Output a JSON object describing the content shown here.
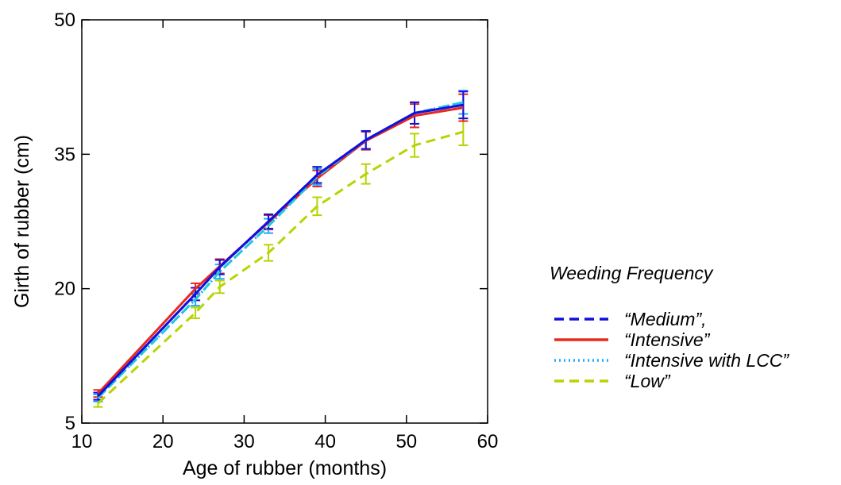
{
  "chart_data": {
    "type": "line",
    "xlabel": "Age of rubber (months)",
    "ylabel": "Girth of rubber (cm)",
    "xlim": [
      10,
      60
    ],
    "ylim": [
      5,
      50
    ],
    "xticks": [
      10,
      20,
      30,
      40,
      50,
      60
    ],
    "yticks": [
      5,
      20,
      35,
      50
    ],
    "grid": false,
    "legend": {
      "title": "Weeding Frequency",
      "placement": "right",
      "entries": [
        "“Medium”,",
        "“Intensive”",
        "“Intensive with LCC”",
        "“Low”"
      ]
    },
    "x": [
      12,
      24,
      27,
      33,
      39,
      45,
      51,
      57
    ],
    "series": [
      {
        "name": "“Medium”,",
        "color": "#1010e0",
        "style": "dashed",
        "values": [
          8.0,
          19.4,
          22.4,
          27.5,
          32.7,
          36.6,
          39.6,
          40.5
        ],
        "errors": [
          0.4,
          0.7,
          0.8,
          0.8,
          0.9,
          1.0,
          1.2,
          1.5
        ]
      },
      {
        "name": "“Intensive”",
        "color": "#e8281e",
        "style": "solid",
        "values": [
          8.3,
          20.0,
          22.5,
          27.4,
          32.3,
          36.5,
          39.3,
          40.2
        ],
        "errors": [
          0.4,
          0.6,
          0.8,
          0.8,
          0.9,
          1.0,
          1.3,
          1.5
        ]
      },
      {
        "name": "“Intensive with LCC”",
        "color": "#22aaff",
        "style": "dotted",
        "values": [
          7.8,
          18.8,
          21.9,
          27.0,
          32.5,
          36.6,
          39.6,
          40.8
        ],
        "errors": [
          0.4,
          0.7,
          0.8,
          0.8,
          0.9,
          1.0,
          1.2,
          1.3
        ]
      },
      {
        "name": "“Low”",
        "color": "#b8d400",
        "style": "dashed",
        "values": [
          7.2,
          17.3,
          20.2,
          24.0,
          29.2,
          32.8,
          36.0,
          37.5
        ],
        "errors": [
          0.4,
          0.6,
          0.7,
          0.9,
          1.0,
          1.1,
          1.3,
          1.5
        ]
      }
    ],
    "overlay_line": {
      "color": "#1010e0",
      "style": "solid",
      "values": [
        8.0,
        19.4,
        22.4,
        27.5,
        32.7,
        36.6,
        39.6,
        40.5
      ]
    },
    "cyan_overlay": {
      "color": "#22c8d8",
      "style": "dashed",
      "values": [
        7.8,
        18.8,
        21.9,
        27.0,
        32.5,
        36.6,
        39.6,
        40.8
      ]
    }
  }
}
